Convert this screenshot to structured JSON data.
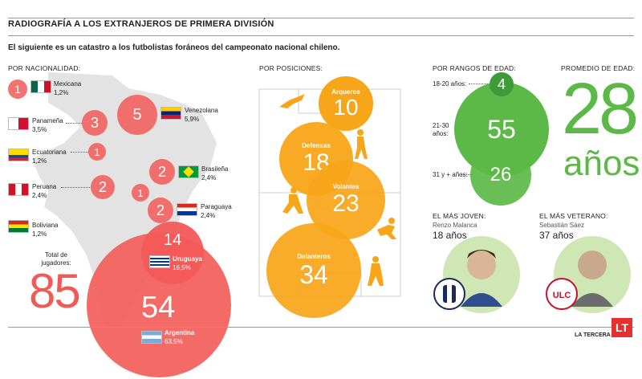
{
  "header": {
    "title": "RADIOGRAFÍA A LOS EXTRANJEROS DE PRIMERA DIVISIÓN",
    "subtitle": "El siguiente es un catastro a los futbolistas foráneos del campeonato nacional chileno."
  },
  "sections": {
    "nationality": "POR NACIONALIDAD:",
    "positions": "POR POSICIONES:",
    "age_ranges": "POR RANGOS DE EDAD:",
    "avg_age": "PROMEDIO DE EDAD:",
    "youngest": "EL MÁS JOVEN:",
    "oldest": "EL MÁS VETERANO:"
  },
  "nationalities": [
    {
      "name": "Mexicana",
      "count": "1",
      "pct": "1,2%"
    },
    {
      "name": "Panameña",
      "count": "3",
      "pct": "3,5%"
    },
    {
      "name": "Venezolana",
      "count": "5",
      "pct": "5,9%"
    },
    {
      "name": "Ecuatoriana",
      "count": "1",
      "pct": "1,2%"
    },
    {
      "name": "Brasileña",
      "count": "2",
      "pct": "2,4%"
    },
    {
      "name": "Peruana",
      "count": "2",
      "pct": "2,4%"
    },
    {
      "name": "Boliviana",
      "count": "1",
      "pct": "1,2%"
    },
    {
      "name": "Paraguaya",
      "count": "2",
      "pct": "2,4%"
    },
    {
      "name": "Uruguaya",
      "count": "14",
      "pct": "16,5%"
    },
    {
      "name": "Argentina",
      "count": "54",
      "pct": "63,5%"
    }
  ],
  "total": {
    "label": "Total de jugadores:",
    "value": "85"
  },
  "positions": [
    {
      "name": "Arqueros",
      "count": "10"
    },
    {
      "name": "Defensas",
      "count": "18"
    },
    {
      "name": "Volantes",
      "count": "23"
    },
    {
      "name": "Delanteros",
      "count": "34"
    }
  ],
  "age_ranges": [
    {
      "label": "18-20 años:",
      "count": "4"
    },
    {
      "label": "21-30 años:",
      "count": "55"
    },
    {
      "label": "31 y + años:",
      "count": "26"
    }
  ],
  "average_age": {
    "value": "28",
    "unit": "años"
  },
  "youngest": {
    "name": "Renzo Malanca",
    "age": "18 años"
  },
  "oldest": {
    "name": "Sebastián Sáez",
    "age": "37 años"
  },
  "footer": {
    "logo": "LT",
    "brand": "LA TERCERA"
  },
  "colors": {
    "nationality": "#f25a57",
    "positions": "#f8a619",
    "age": "#5cb947",
    "avg": "#5cb947"
  }
}
